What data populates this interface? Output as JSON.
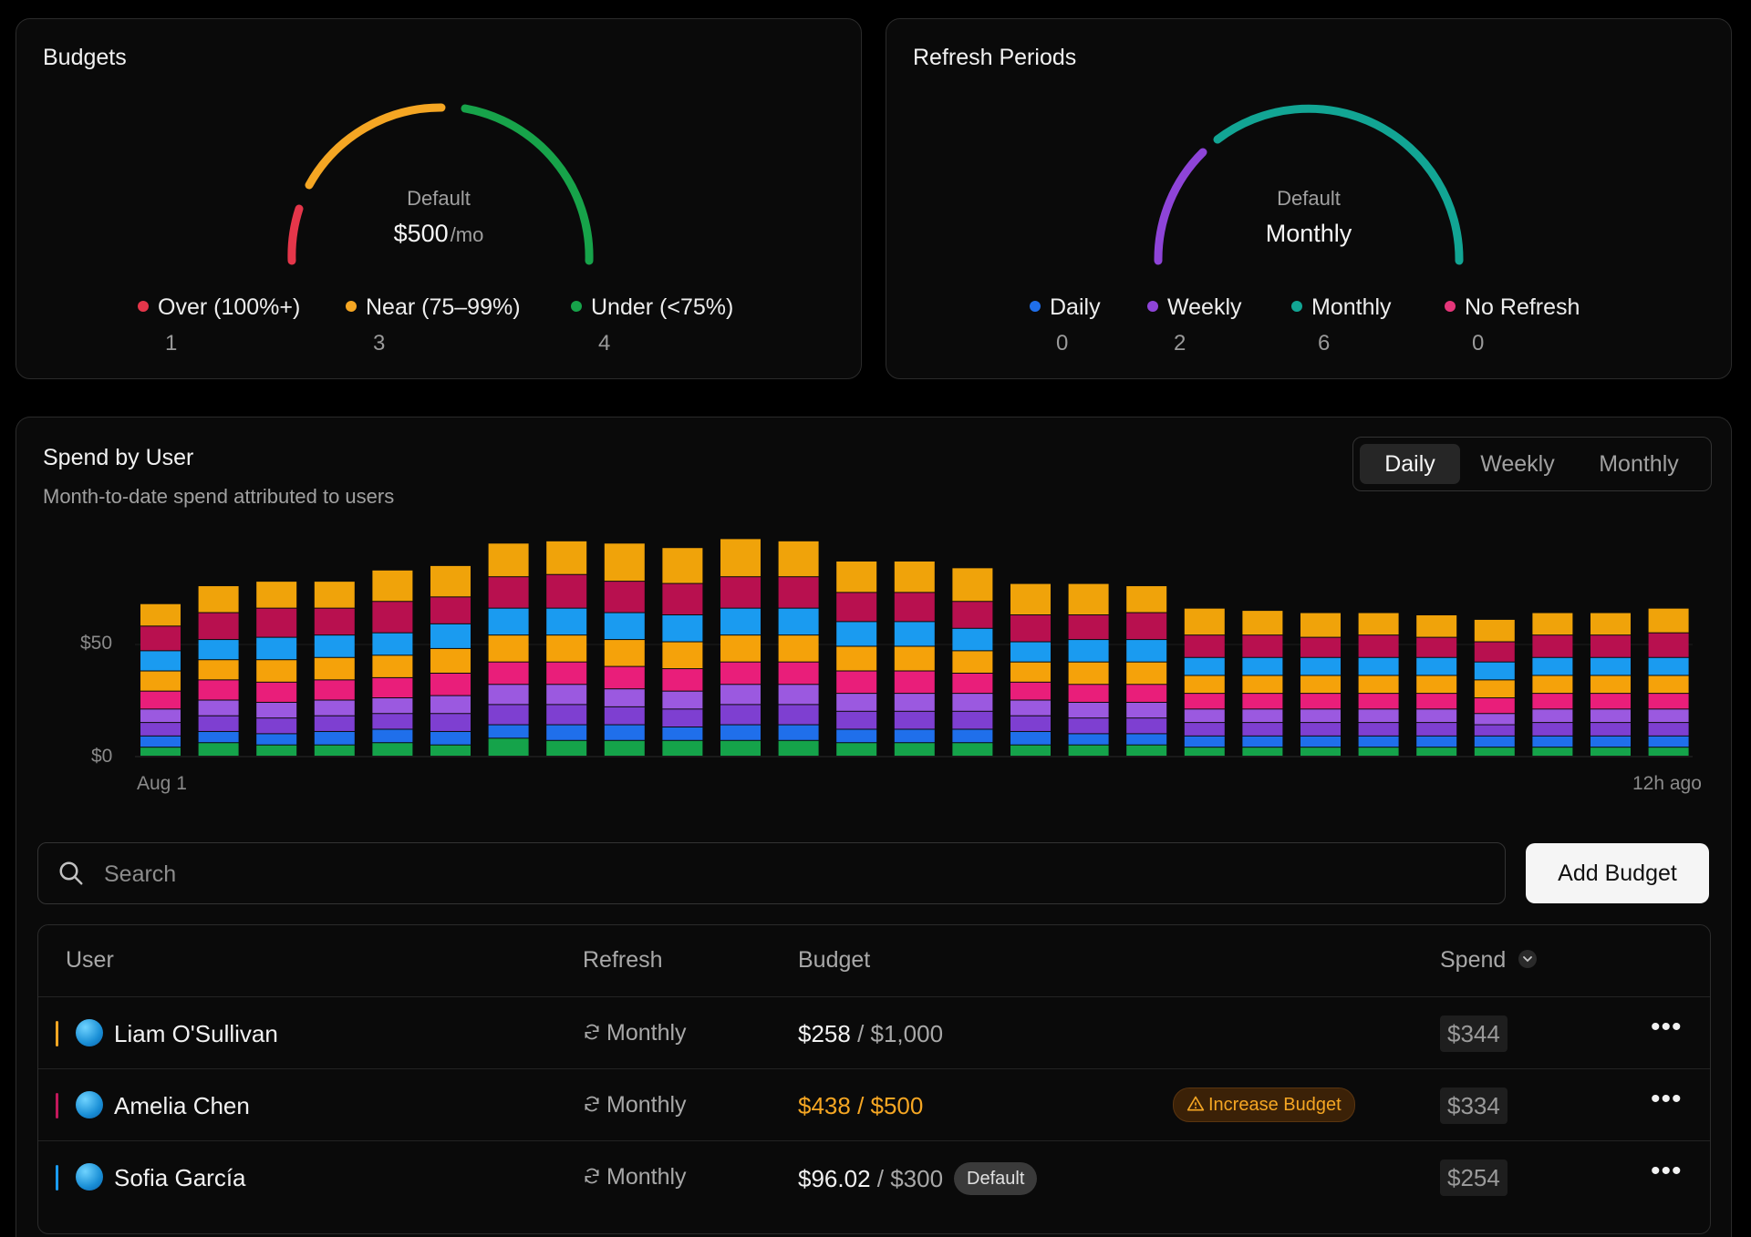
{
  "budgets_card": {
    "title": "Budgets",
    "center_label": "Default",
    "center_value": "$500",
    "center_unit": "/mo",
    "legend": [
      {
        "label": "Over (100%+)",
        "count": "1",
        "color": "#e5364a"
      },
      {
        "label": "Near (75–99%)",
        "count": "3",
        "color": "#f5a623"
      },
      {
        "label": "Under (<75%)",
        "count": "4",
        "color": "#17a34a"
      }
    ]
  },
  "refresh_card": {
    "title": "Refresh Periods",
    "center_label": "Default",
    "center_value": "Monthly",
    "legend": [
      {
        "label": "Daily",
        "count": "0",
        "color": "#1f6feb"
      },
      {
        "label": "Weekly",
        "count": "2",
        "color": "#8e44d8"
      },
      {
        "label": "Monthly",
        "count": "6",
        "color": "#12a594"
      },
      {
        "label": "No Refresh",
        "count": "0",
        "color": "#e5367a"
      }
    ]
  },
  "spend_card": {
    "title": "Spend by User",
    "subtitle": "Month-to-date spend attributed to users",
    "periods": [
      "Daily",
      "Weekly",
      "Monthly"
    ],
    "active_period": "Daily",
    "x_start_label": "Aug 1",
    "x_end_label": "12h ago"
  },
  "chart_data": {
    "type": "bar",
    "stacked": true,
    "ylim": [
      0,
      100
    ],
    "yticks": [
      "$0",
      "$50"
    ],
    "series": [
      {
        "color": "#15a34a",
        "values": [
          4,
          6,
          5,
          5,
          6,
          5,
          8,
          7,
          7,
          7,
          7,
          7,
          6,
          6,
          6,
          5,
          5,
          5,
          4,
          4,
          4,
          4,
          4,
          4,
          4,
          4,
          4
        ]
      },
      {
        "color": "#1f6feb",
        "values": [
          5,
          5,
          5,
          6,
          6,
          6,
          6,
          7,
          7,
          6,
          7,
          7,
          6,
          6,
          6,
          6,
          5,
          5,
          5,
          5,
          5,
          5,
          5,
          5,
          5,
          5,
          5
        ]
      },
      {
        "color": "#7e3fd1",
        "values": [
          6,
          7,
          7,
          7,
          7,
          8,
          9,
          9,
          8,
          8,
          9,
          9,
          8,
          8,
          8,
          7,
          7,
          7,
          6,
          6,
          6,
          6,
          6,
          5,
          6,
          6,
          6
        ]
      },
      {
        "color": "#9b59e0",
        "values": [
          6,
          7,
          7,
          7,
          7,
          8,
          9,
          9,
          8,
          8,
          9,
          9,
          8,
          8,
          8,
          7,
          7,
          7,
          6,
          6,
          6,
          6,
          6,
          5,
          6,
          6,
          6
        ]
      },
      {
        "color": "#e91e7a",
        "values": [
          8,
          9,
          9,
          9,
          9,
          10,
          10,
          10,
          10,
          10,
          10,
          10,
          10,
          10,
          9,
          8,
          8,
          8,
          7,
          7,
          7,
          7,
          7,
          7,
          7,
          7,
          7
        ]
      },
      {
        "color": "#f5a20a",
        "values": [
          9,
          9,
          10,
          10,
          10,
          11,
          12,
          12,
          12,
          12,
          12,
          12,
          11,
          11,
          10,
          9,
          10,
          10,
          8,
          8,
          8,
          8,
          8,
          8,
          8,
          8,
          8
        ]
      },
      {
        "color": "#1a9bf0",
        "values": [
          9,
          9,
          10,
          10,
          10,
          11,
          12,
          12,
          12,
          12,
          12,
          12,
          11,
          11,
          10,
          9,
          10,
          10,
          8,
          8,
          8,
          8,
          8,
          8,
          8,
          8,
          8
        ]
      },
      {
        "color": "#b8104f",
        "values": [
          11,
          12,
          13,
          12,
          14,
          12,
          14,
          15,
          14,
          14,
          14,
          14,
          13,
          13,
          12,
          12,
          11,
          12,
          10,
          10,
          9,
          10,
          9,
          9,
          10,
          10,
          11
        ]
      },
      {
        "color": "#f0a30a",
        "values": [
          10,
          12,
          12,
          12,
          14,
          14,
          15,
          15,
          17,
          16,
          17,
          16,
          14,
          14,
          15,
          14,
          14,
          12,
          12,
          11,
          11,
          10,
          10,
          10,
          10,
          10,
          11
        ]
      }
    ]
  },
  "search": {
    "placeholder": "Search"
  },
  "add_button": "Add Budget",
  "table": {
    "headers": {
      "user": "User",
      "refresh": "Refresh",
      "budget": "Budget",
      "spend": "Spend"
    },
    "rows": [
      {
        "color": "#f5a623",
        "name": "Liam O'Sullivan",
        "refresh": "Monthly",
        "spent": "$258",
        "limit": "$1,000",
        "status": "normal",
        "badge": "",
        "spend": "$344"
      },
      {
        "color": "#c2185b",
        "name": "Amelia Chen",
        "refresh": "Monthly",
        "spent": "$438",
        "limit": "$500",
        "status": "warn",
        "badge": "Increase Budget",
        "spend": "$334"
      },
      {
        "color": "#1a9bf0",
        "name": "Sofia García",
        "refresh": "Monthly",
        "spent": "$96.02",
        "limit": "$300",
        "status": "normal",
        "badge": "Default",
        "spend": "$254"
      }
    ]
  }
}
